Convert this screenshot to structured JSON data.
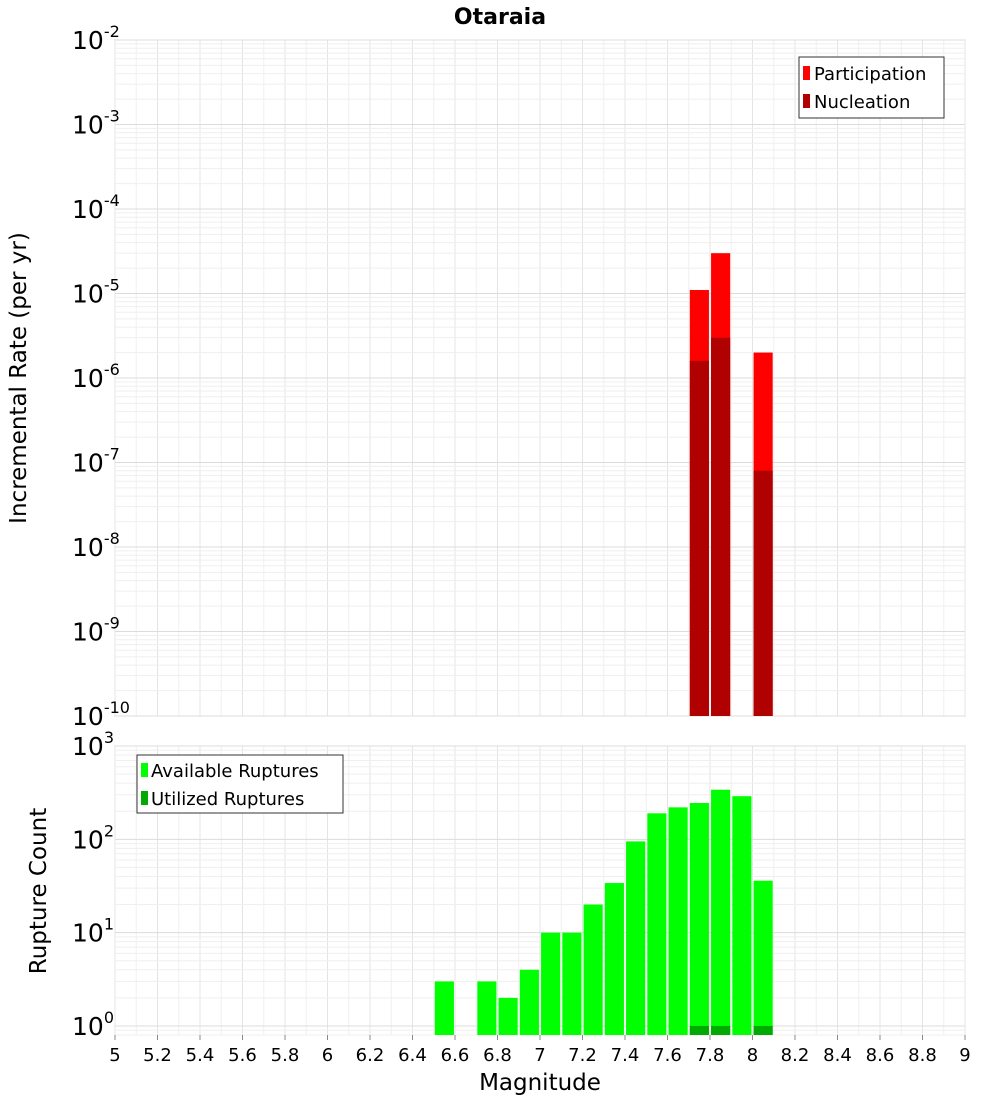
{
  "chart_data": [
    {
      "type": "bar",
      "title": "Otaraia",
      "xlabel": "",
      "ylabel": "Incremental Rate (per yr)",
      "yscale": "log",
      "ylim": [
        1e-10,
        0.01
      ],
      "xlim": [
        5,
        9
      ],
      "bar_width": 0.09,
      "y_ticks": [
        {
          "base": "10",
          "exp": "-10"
        },
        {
          "base": "10",
          "exp": "-9"
        },
        {
          "base": "10",
          "exp": "-8"
        },
        {
          "base": "10",
          "exp": "-7"
        },
        {
          "base": "10",
          "exp": "-6"
        },
        {
          "base": "10",
          "exp": "-5"
        },
        {
          "base": "10",
          "exp": "-4"
        },
        {
          "base": "10",
          "exp": "-3"
        },
        {
          "base": "10",
          "exp": "-2"
        }
      ],
      "legend_position": "top-right",
      "series": [
        {
          "name": "Participation",
          "color": "#ff0000",
          "x": [
            7.75,
            7.85,
            8.05
          ],
          "values": [
            1.1e-05,
            3e-05,
            2e-06
          ]
        },
        {
          "name": "Nucleation",
          "color": "#b00000",
          "x": [
            7.75,
            7.85,
            8.05
          ],
          "values": [
            1.6e-06,
            3e-06,
            8e-08
          ]
        }
      ]
    },
    {
      "type": "bar",
      "title": "",
      "xlabel": "Magnitude",
      "ylabel": "Rupture Count",
      "yscale": "log",
      "ylim": [
        0.8,
        1000
      ],
      "xlim": [
        5,
        9
      ],
      "bar_width": 0.09,
      "y_ticks": [
        {
          "value": 1,
          "base": "10",
          "exp": "0"
        },
        {
          "value": 10,
          "base": "10",
          "exp": "1"
        },
        {
          "value": 100,
          "base": "10",
          "exp": "2"
        },
        {
          "value": 1000,
          "base": "10",
          "exp": "3"
        }
      ],
      "x_ticks": [
        "5",
        "5.2",
        "5.4",
        "5.6",
        "5.8",
        "6",
        "6.2",
        "6.4",
        "6.6",
        "6.8",
        "7",
        "7.2",
        "7.4",
        "7.6",
        "7.8",
        "8",
        "8.2",
        "8.4",
        "8.6",
        "8.8",
        "9"
      ],
      "legend_position": "top-left",
      "series": [
        {
          "name": "Available Ruptures",
          "color": "#00ff00",
          "x": [
            6.55,
            6.75,
            6.85,
            6.95,
            7.05,
            7.15,
            7.25,
            7.35,
            7.45,
            7.55,
            7.65,
            7.75,
            7.85,
            7.95,
            8.05
          ],
          "values": [
            3,
            3,
            2,
            4,
            10,
            10,
            20,
            34,
            95,
            190,
            220,
            245,
            340,
            290,
            36
          ]
        },
        {
          "name": "Utilized Ruptures",
          "color": "#00aa00",
          "x": [
            7.75,
            7.85,
            8.05
          ],
          "values": [
            1,
            1,
            1
          ]
        }
      ]
    }
  ]
}
